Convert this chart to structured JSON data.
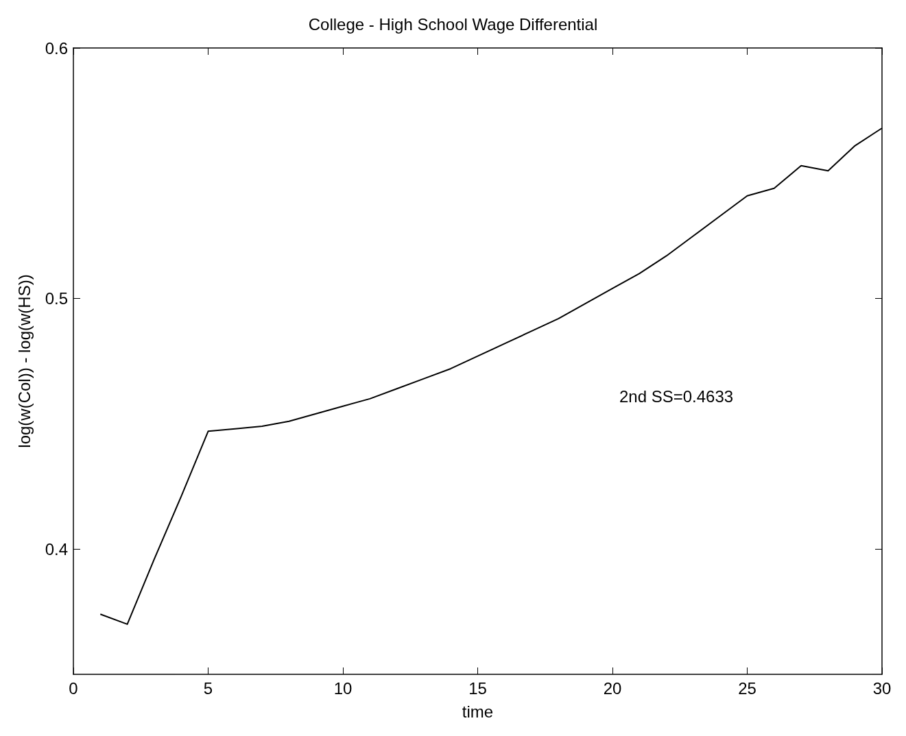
{
  "chart_data": {
    "type": "line",
    "title": "College - High School Wage Differential",
    "xlabel": "time",
    "ylabel": "log(w(Col)) - log(w(HS))",
    "x": [
      1,
      2,
      3,
      4,
      5,
      6,
      7,
      8,
      9,
      10,
      11,
      12,
      13,
      14,
      15,
      16,
      17,
      18,
      19,
      20,
      21,
      22,
      23,
      24,
      25,
      26,
      27,
      28,
      29,
      30
    ],
    "series": [
      {
        "color": "#000000",
        "values": [
          0.374,
          0.37,
          0.396,
          0.421,
          0.447,
          0.448,
          0.449,
          0.451,
          0.454,
          0.457,
          0.46,
          0.464,
          0.468,
          0.472,
          0.477,
          0.482,
          0.487,
          0.492,
          0.498,
          0.504,
          0.51,
          0.517,
          0.525,
          0.533,
          0.541,
          0.544,
          0.553,
          0.551,
          0.561,
          0.568
        ]
      }
    ],
    "xlim": [
      0,
      30
    ],
    "xticks": [
      0,
      5,
      10,
      15,
      20,
      25,
      30
    ],
    "ylim": [
      0.35,
      0.6
    ],
    "yticks": [
      0.4,
      0.5,
      0.6
    ],
    "grid": false,
    "marker": "none",
    "line_style": "solid",
    "annotations": [
      "2nd SS=0.4633"
    ]
  }
}
